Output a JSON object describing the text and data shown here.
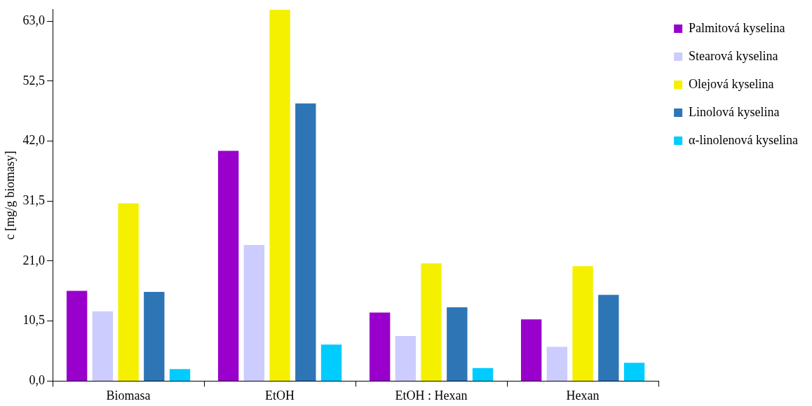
{
  "chart_data": {
    "type": "bar",
    "ylabel": "c [mg/g biomasy]",
    "categories": [
      "Biomasa",
      "EtOH",
      "EtOH : Hexan",
      "Hexan"
    ],
    "series": [
      {
        "name": "Palmitová kyselina",
        "color": "#9900cc",
        "values": [
          15.8,
          40.3,
          12.0,
          10.8
        ]
      },
      {
        "name": "Stearová kyselina",
        "color": "#ccccff",
        "values": [
          12.2,
          23.8,
          7.9,
          6.0
        ]
      },
      {
        "name": "Olejová kyselina",
        "color": "#f5f000",
        "values": [
          31.1,
          65.0,
          20.6,
          20.1
        ]
      },
      {
        "name": "Linolová kyselina",
        "color": "#2e75b6",
        "values": [
          15.6,
          48.6,
          12.9,
          15.1
        ]
      },
      {
        "name": "α-linolenová kyselina",
        "color": "#00ccff",
        "values": [
          2.1,
          6.4,
          2.3,
          3.2
        ]
      }
    ],
    "ylim": [
      0,
      65
    ],
    "yticks": [
      {
        "value": 0,
        "label": "0,0"
      },
      {
        "value": 10.5,
        "label": "10,5"
      },
      {
        "value": 21,
        "label": "21,0"
      },
      {
        "value": 31.5,
        "label": "31,5"
      },
      {
        "value": 42,
        "label": "42,0"
      },
      {
        "value": 52.5,
        "label": "52,5"
      },
      {
        "value": 63,
        "label": "63,0"
      }
    ],
    "grid": false,
    "legend": "right"
  }
}
